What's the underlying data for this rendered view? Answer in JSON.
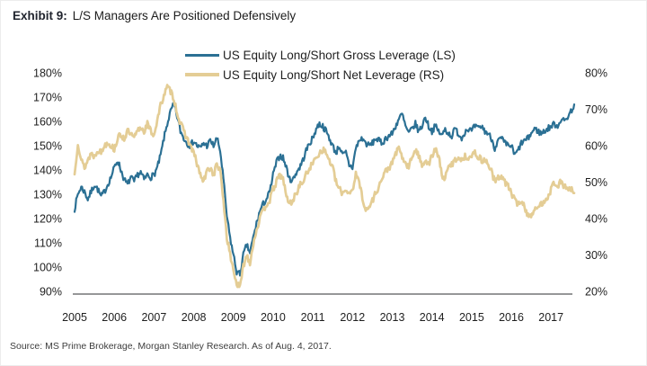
{
  "header": {
    "exhibit_label": "Exhibit 9:",
    "title": "L/S Managers Are Positioned Defensively"
  },
  "footer": {
    "source": "Source: MS Prime Brokerage, Morgan Stanley Research. As of Aug. 4, 2017."
  },
  "chart_data": {
    "type": "line",
    "title": "",
    "grid": false,
    "legend_position": "top-center",
    "x_start_year": 2005,
    "x_step_months": 1,
    "x_end_label": "Aug 2017",
    "x_ticks": [
      2005,
      2006,
      2007,
      2008,
      2009,
      2010,
      2011,
      2012,
      2013,
      2014,
      2015,
      2016,
      2017
    ],
    "axes": {
      "left": {
        "min": 90,
        "max": 180,
        "ticks": [
          180,
          170,
          160,
          150,
          140,
          130,
          120,
          110,
          100,
          90
        ],
        "format": "percent"
      },
      "right": {
        "min": 20,
        "max": 80,
        "ticks": [
          80,
          70,
          60,
          50,
          40,
          30,
          20
        ],
        "format": "percent"
      }
    },
    "series": [
      {
        "name": "US Equity Long/Short Gross Leverage (LS)",
        "axis": "left",
        "color": "#2b7094",
        "values": [
          124,
          130,
          133,
          131,
          128,
          131,
          134,
          132,
          129,
          131,
          134,
          137,
          141,
          144,
          140,
          136,
          134,
          137,
          135,
          138,
          139,
          136,
          138,
          137,
          138,
          141,
          146,
          153,
          159,
          164,
          167,
          162,
          156,
          153,
          151,
          150,
          152,
          150,
          149,
          151,
          150,
          152,
          150,
          153,
          148,
          136,
          121,
          112,
          105,
          98,
          97,
          105,
          109,
          106,
          112,
          118,
          123,
          126,
          128,
          131,
          138,
          143,
          146,
          145,
          141,
          136,
          136,
          139,
          141,
          144,
          148,
          151,
          153,
          157,
          159,
          158,
          156,
          153,
          150,
          147,
          150,
          146,
          147,
          142,
          141,
          149,
          152,
          153,
          151,
          150,
          151,
          153,
          152,
          151,
          153,
          154,
          155,
          158,
          161,
          163,
          158,
          155,
          157,
          159,
          156,
          158,
          162,
          158,
          156,
          158,
          156,
          154,
          157,
          155,
          154,
          157,
          155,
          153,
          156,
          157,
          156,
          158,
          157,
          158,
          156,
          155,
          153,
          149,
          152,
          153,
          151,
          150,
          150,
          146,
          148,
          151,
          152,
          153,
          155,
          157,
          156,
          155,
          156,
          157,
          158,
          159,
          158,
          161,
          160,
          162,
          164,
          167
        ]
      },
      {
        "name": "US Equity Long/Short Net Leverage (RS)",
        "axis": "right",
        "color": "#e4cd95",
        "values": [
          52,
          61,
          56,
          54,
          56,
          58,
          57,
          59,
          58,
          60,
          61,
          60,
          59,
          62,
          63,
          62,
          64,
          63,
          62,
          64,
          65,
          64,
          66,
          64,
          63,
          67,
          71,
          74,
          76,
          75,
          73,
          69,
          66,
          64,
          62,
          60,
          58,
          55,
          52,
          50,
          53,
          54,
          52,
          55,
          53,
          45,
          35,
          30,
          26,
          22,
          21,
          27,
          30,
          28,
          33,
          37,
          40,
          42,
          44,
          45,
          48,
          50,
          52,
          51,
          46,
          44,
          45,
          47,
          49,
          50,
          52,
          54,
          55,
          57,
          58,
          59,
          58,
          56,
          54,
          50,
          48,
          47,
          48,
          47,
          48,
          52,
          50,
          46,
          42,
          43,
          45,
          47,
          49,
          51,
          53,
          54,
          55,
          58,
          59,
          57,
          55,
          54,
          57,
          59,
          57,
          55,
          56,
          55,
          57,
          59,
          57,
          52,
          51,
          54,
          55,
          56,
          57,
          56,
          57,
          57,
          57,
          58,
          57,
          56,
          56,
          55,
          53,
          50,
          51,
          52,
          50,
          49,
          47,
          45,
          44,
          45,
          43,
          41,
          41,
          42,
          43,
          44,
          45,
          46,
          48,
          50,
          49,
          50,
          49,
          48,
          48,
          47
        ]
      }
    ]
  }
}
